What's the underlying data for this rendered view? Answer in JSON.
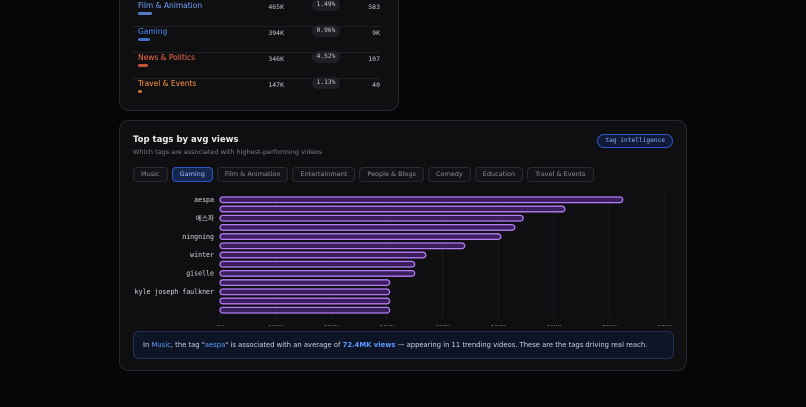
{
  "categories_table": {
    "rows": [
      {
        "name": "Film & Animation",
        "views": "465K",
        "share": "1.49%",
        "count": "583",
        "color": "#6fa3ff",
        "share_fraction": 0.55
      },
      {
        "name": "Gaming",
        "views": "394K",
        "share": "0.96%",
        "count": "9K",
        "color": "#4d8dff",
        "share_fraction": 0.45
      },
      {
        "name": "News & Politics",
        "views": "346K",
        "share": "4.52%",
        "count": "107",
        "color": "#ff6b4a",
        "share_fraction": 0.4
      },
      {
        "name": "Travel & Events",
        "views": "147K",
        "share": "1.13%",
        "count": "40",
        "color": "#ff9a3c",
        "share_fraction": 0.15
      }
    ]
  },
  "tags_card": {
    "title": "Top tags by avg views",
    "subtitle": "Which tags are associated with highest-performing videos",
    "badge": "tag intelligence",
    "tabs": [
      "Music",
      "Gaming",
      "Film & Animation",
      "Entertainment",
      "People & Blogs",
      "Comedy",
      "Education",
      "Travel & Events"
    ],
    "active_tab": "Gaming",
    "insight": {
      "prefix": "In ",
      "category": "Music",
      "mid1": ", the tag \"",
      "tag": "aespa",
      "mid2": "\" is associated with an average of ",
      "avg": "72.4MK views",
      "suffix": " — appearing in 11 trending videos. These are the tags driving real reach."
    }
  },
  "colors": {
    "bar_fill": "#3b1f5c",
    "bar_stroke": "#b47cf5",
    "accent_blue": "#5e9bff"
  },
  "chart_data": {
    "type": "bar",
    "orientation": "horizontal",
    "categories": [
      "aespa",
      "",
      "에스파",
      "",
      "ningning",
      "",
      "winter",
      "",
      "giselle",
      "",
      "kyle joseph faulkner",
      "",
      ""
    ],
    "values": [
      72400,
      62000,
      54500,
      53000,
      50500,
      44000,
      37000,
      35000,
      35000,
      30500,
      30500,
      30500,
      30500
    ],
    "xlim": [
      0,
      80000
    ],
    "xticks": [
      "0K",
      "10KK",
      "20KK",
      "30KK",
      "40KK",
      "50KK",
      "60KK",
      "70KK",
      "80KK"
    ],
    "grid": true
  }
}
